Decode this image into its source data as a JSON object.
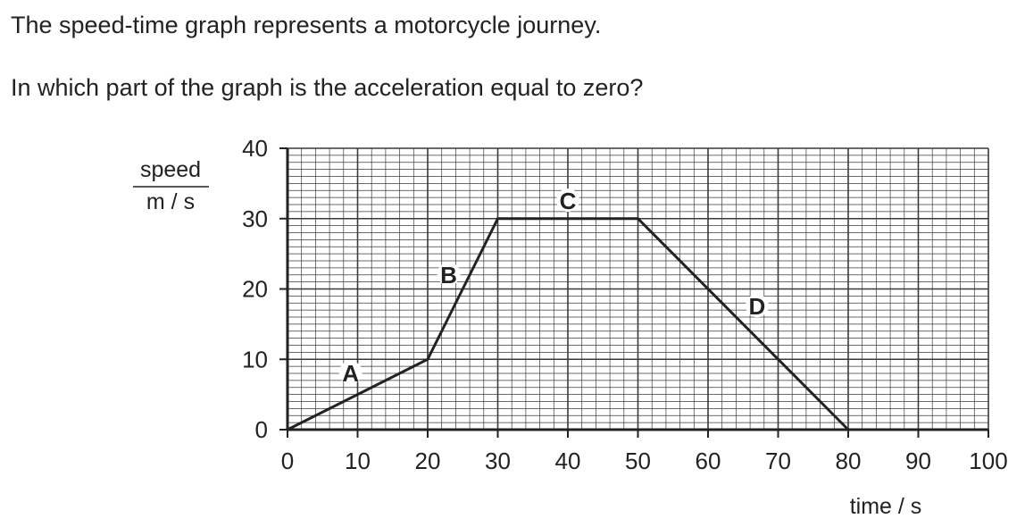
{
  "question": {
    "line1": "The speed-time graph represents a motorcycle journey.",
    "line2": "In which part of the graph is the acceleration equal to zero?"
  },
  "chart_data": {
    "type": "line",
    "x": [
      0,
      20,
      30,
      50,
      80
    ],
    "y": [
      0,
      10,
      30,
      30,
      0
    ],
    "xlim": [
      0,
      100
    ],
    "ylim": [
      0,
      40
    ],
    "x_ticks": [
      0,
      10,
      20,
      30,
      40,
      50,
      60,
      70,
      80,
      90,
      100
    ],
    "y_ticks": [
      0,
      10,
      20,
      30,
      40
    ],
    "xlabel": "time / s",
    "ylabel_top": "speed",
    "ylabel_bottom": "m / s",
    "grid": true,
    "segment_labels": [
      {
        "label": "A",
        "x": 9,
        "y": 8
      },
      {
        "label": "B",
        "x": 23,
        "y": 22
      },
      {
        "label": "C",
        "x": 40,
        "y": 32.5
      },
      {
        "label": "D",
        "x": 67,
        "y": 17.5
      }
    ],
    "colors": {
      "line": "#222222",
      "grid": "#3a3a3a",
      "text": "#222222"
    }
  }
}
